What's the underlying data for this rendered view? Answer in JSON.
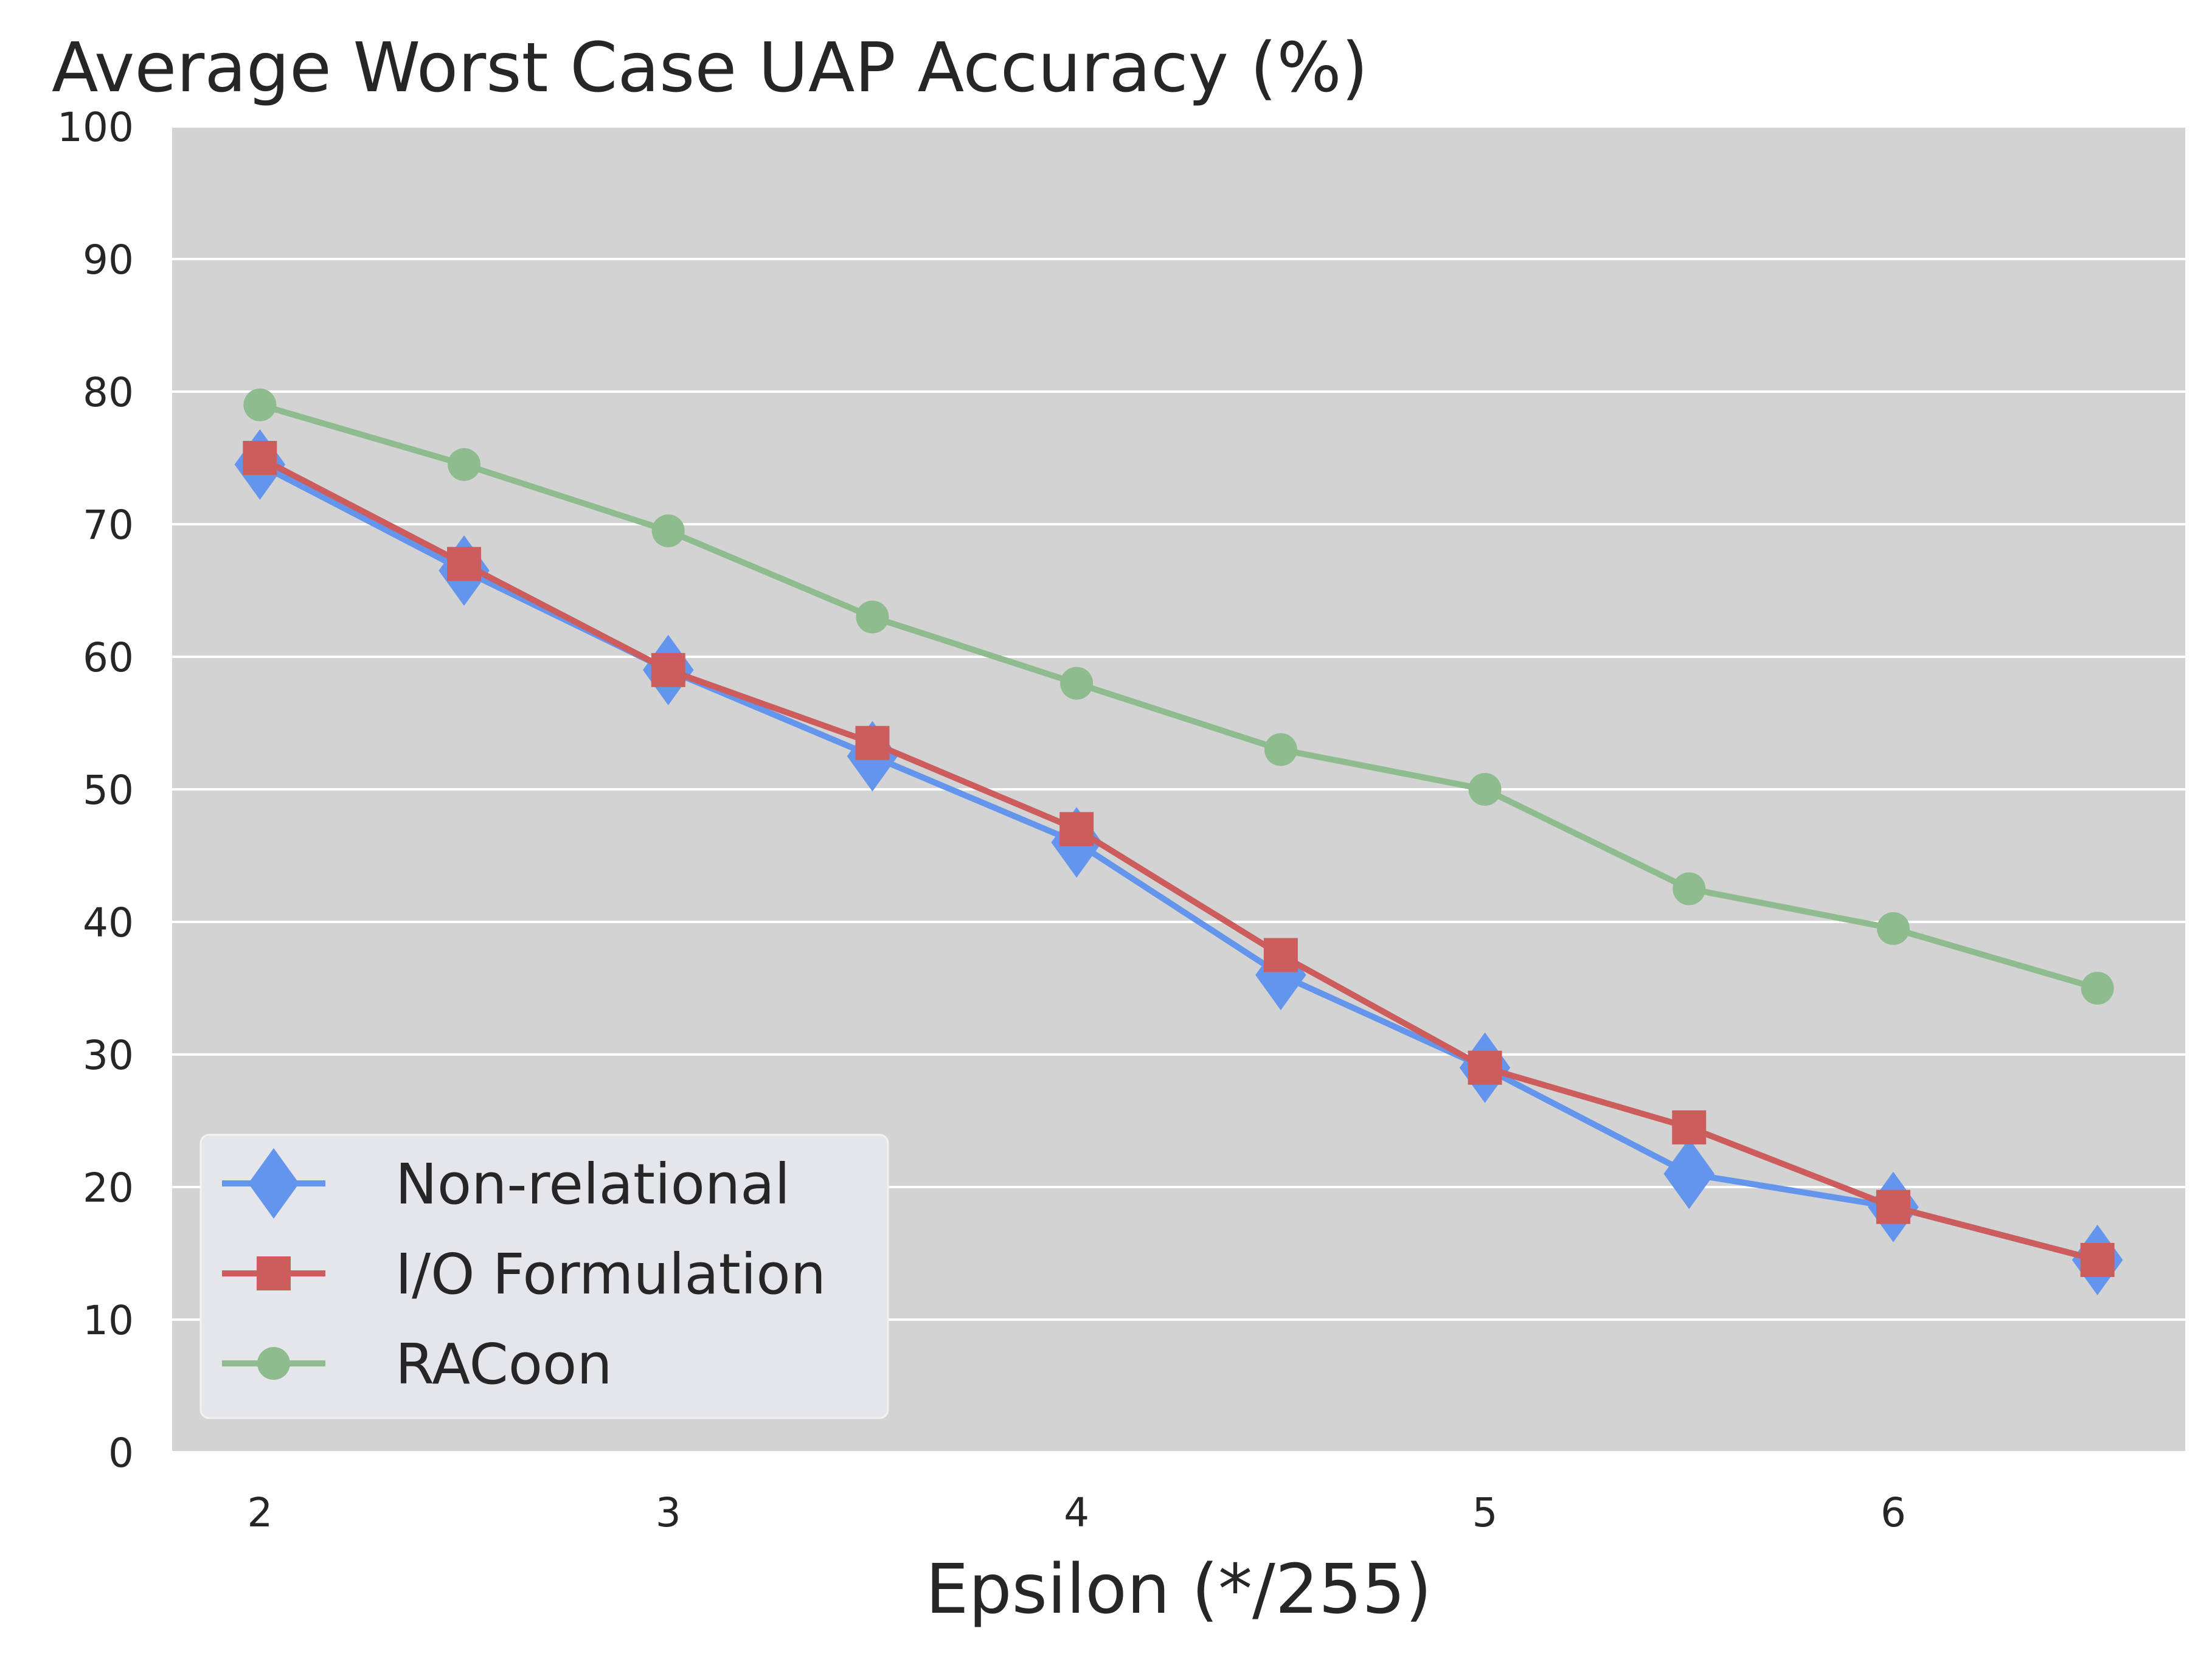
{
  "chart_data": {
    "type": "line",
    "title": "Average Worst Case UAP Accuracy (%)",
    "xlabel": "Epsilon (*/255)",
    "ylabel": "",
    "x": [
      2,
      2.5,
      3,
      3.5,
      4,
      4.5,
      5,
      5.5,
      6,
      6.5
    ],
    "xticks": [
      2,
      3,
      4,
      5,
      6
    ],
    "yticks": [
      0,
      10,
      20,
      30,
      40,
      50,
      60,
      70,
      80,
      90,
      100
    ],
    "xlim": [
      1.785,
      6.715
    ],
    "ylim": [
      0,
      100
    ],
    "grid": true,
    "legend_position": "lower-left",
    "series": [
      {
        "name": "Non-relational",
        "color": "#6495ED",
        "marker": "diamond",
        "values": [
          74.5,
          66.5,
          59,
          52.5,
          46,
          36,
          29,
          21,
          18.5,
          14.5
        ]
      },
      {
        "name": "I/O Formulation",
        "color": "#CD5C5C",
        "marker": "square",
        "values": [
          75,
          67,
          59,
          53.5,
          47,
          37.5,
          29,
          24.5,
          18.5,
          14.5
        ]
      },
      {
        "name": "RACoon",
        "color": "#8FBC8F",
        "marker": "circle",
        "values": [
          79,
          74.5,
          69.5,
          63,
          58,
          53,
          50,
          42.5,
          39.5,
          35
        ]
      }
    ]
  },
  "colors": {
    "plot_background": "#D3D3D3",
    "grid": "#FFFFFF",
    "legend_background": "#E5E5EC"
  }
}
